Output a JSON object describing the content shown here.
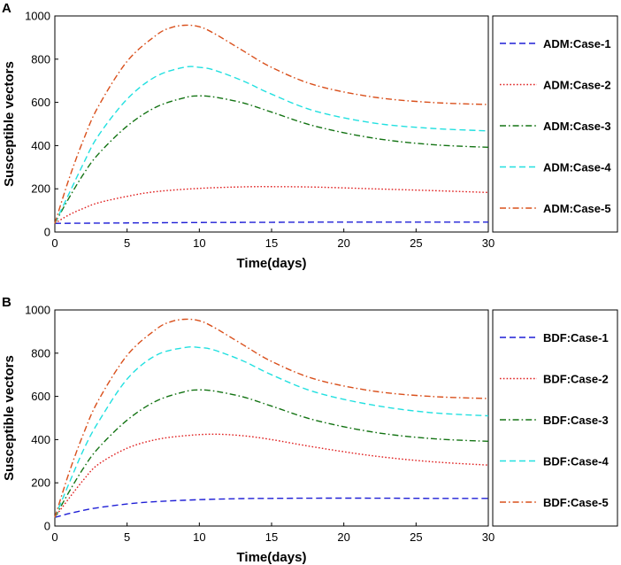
{
  "chart_data": [
    {
      "panel": "A",
      "type": "line",
      "xlabel": "Time(days)",
      "ylabel": "Susceptible vectors",
      "xlim": [
        0,
        30
      ],
      "ylim": [
        0,
        1000
      ],
      "xticks": [
        0,
        5,
        10,
        15,
        20,
        25,
        30
      ],
      "yticks": [
        0,
        200,
        400,
        600,
        800,
        1000
      ],
      "series": [
        {
          "name": "ADM:Case-1",
          "color": "#1f1fd6",
          "dash": "dashed",
          "x": [
            0,
            5,
            10,
            15,
            20,
            25,
            30
          ],
          "y": [
            40,
            42,
            44,
            45,
            46,
            46,
            46
          ]
        },
        {
          "name": "ADM:Case-2",
          "color": "#e02020",
          "dash": "dotted",
          "x": [
            0,
            1,
            2,
            3,
            5,
            7,
            10,
            13,
            15,
            18,
            22,
            26,
            30
          ],
          "y": [
            40,
            80,
            110,
            135,
            165,
            187,
            202,
            209,
            210,
            208,
            200,
            192,
            183
          ]
        },
        {
          "name": "ADM:Case-3",
          "color": "#137313",
          "dash": "dashdot",
          "x": [
            0,
            1,
            2,
            3,
            5,
            7,
            9,
            10,
            11,
            13,
            15,
            18,
            22,
            26,
            30
          ],
          "y": [
            40,
            160,
            270,
            360,
            490,
            578,
            622,
            630,
            625,
            598,
            555,
            490,
            435,
            405,
            392
          ]
        },
        {
          "name": "ADM:Case-4",
          "color": "#22e0e0",
          "dash": "dashed",
          "x": [
            0,
            1,
            2,
            3,
            5,
            7,
            9,
            10,
            11,
            13,
            15,
            18,
            22,
            26,
            30
          ],
          "y": [
            40,
            180,
            320,
            445,
            615,
            720,
            763,
            762,
            750,
            700,
            638,
            560,
            505,
            480,
            468
          ]
        },
        {
          "name": "ADM:Case-5",
          "color": "#d9501c",
          "dash": "dashdot",
          "x": [
            0,
            1,
            2,
            3,
            5,
            7,
            8,
            9,
            10,
            11,
            13,
            15,
            18,
            22,
            26,
            30
          ],
          "y": [
            40,
            250,
            430,
            580,
            790,
            910,
            945,
            957,
            950,
            920,
            840,
            762,
            680,
            625,
            600,
            590
          ]
        }
      ]
    },
    {
      "panel": "B",
      "type": "line",
      "xlabel": "Time(days)",
      "ylabel": "Susceptible vectors",
      "xlim": [
        0,
        30
      ],
      "ylim": [
        0,
        1000
      ],
      "xticks": [
        0,
        5,
        10,
        15,
        20,
        25,
        30
      ],
      "yticks": [
        0,
        200,
        400,
        600,
        800,
        1000
      ],
      "series": [
        {
          "name": "BDF:Case-1",
          "color": "#1f1fd6",
          "dash": "dashed",
          "x": [
            0,
            1,
            2,
            3,
            5,
            7,
            10,
            13,
            15,
            18,
            22,
            26,
            30
          ],
          "y": [
            40,
            58,
            73,
            85,
            102,
            113,
            122,
            127,
            128,
            129,
            129,
            128,
            128
          ]
        },
        {
          "name": "BDF:Case-2",
          "color": "#e02020",
          "dash": "dotted",
          "x": [
            0,
            1,
            2,
            3,
            5,
            7,
            9,
            11,
            13,
            15,
            18,
            22,
            26,
            30
          ],
          "y": [
            40,
            130,
            215,
            285,
            360,
            400,
            418,
            425,
            418,
            400,
            365,
            325,
            298,
            282
          ]
        },
        {
          "name": "BDF:Case-3",
          "color": "#137313",
          "dash": "dashdot",
          "x": [
            0,
            1,
            2,
            3,
            5,
            7,
            9,
            10,
            11,
            13,
            15,
            18,
            22,
            26,
            30
          ],
          "y": [
            40,
            160,
            270,
            360,
            490,
            578,
            622,
            630,
            625,
            598,
            555,
            490,
            435,
            405,
            392
          ]
        },
        {
          "name": "BDF:Case-4",
          "color": "#22e0e0",
          "dash": "dashed",
          "x": [
            0,
            1,
            2,
            3,
            5,
            7,
            9,
            10,
            11,
            13,
            15,
            18,
            22,
            26,
            30
          ],
          "y": [
            40,
            200,
            355,
            480,
            680,
            790,
            826,
            826,
            815,
            765,
            700,
            620,
            560,
            525,
            510
          ]
        },
        {
          "name": "BDF:Case-5",
          "color": "#d9501c",
          "dash": "dashdot",
          "x": [
            0,
            1,
            2,
            3,
            5,
            7,
            8,
            9,
            10,
            11,
            13,
            15,
            18,
            22,
            26,
            30
          ],
          "y": [
            40,
            250,
            430,
            580,
            790,
            910,
            945,
            957,
            950,
            920,
            840,
            762,
            680,
            625,
            600,
            590
          ]
        }
      ]
    }
  ]
}
